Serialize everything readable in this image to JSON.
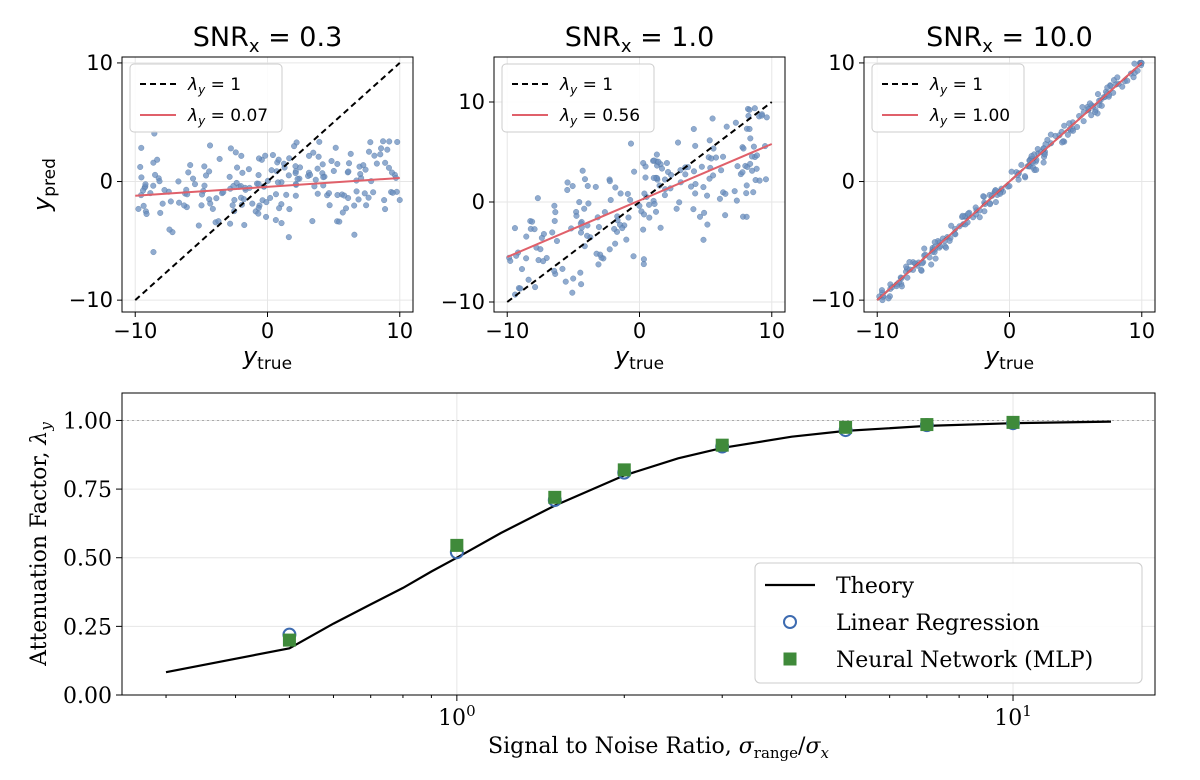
{
  "chart_data": [
    {
      "type": "scatter",
      "title_main": "SNR",
      "title_sub": "x",
      "title_value": "= 0.3",
      "xlabel_main": "y",
      "xlabel_sub": "true",
      "ylabel_main": "y",
      "ylabel_sub": "pred",
      "xlim": [
        -11,
        11
      ],
      "ylim": [
        -11,
        10.5
      ],
      "xticks": [
        -10,
        0,
        10
      ],
      "yticks": [
        -10,
        0,
        10
      ],
      "grid": true,
      "legend_position": "top-left",
      "legend": [
        {
          "label": "λ",
          "sub": "y",
          "value": "= 1",
          "style": "black-dashed"
        },
        {
          "label": "λ",
          "sub": "y",
          "value": "= 0.07",
          "style": "red-solid"
        }
      ],
      "lambda": 0.07,
      "identity_line": [
        [
          -10,
          -10
        ],
        [
          10,
          10
        ]
      ],
      "fit_line": [
        [
          -10,
          -1.2
        ],
        [
          10,
          0.3
        ]
      ],
      "noise": 1.8,
      "seed": 11,
      "n_points": 200
    },
    {
      "type": "scatter",
      "title_main": "SNR",
      "title_sub": "x",
      "title_value": "= 1.0",
      "xlabel_main": "y",
      "xlabel_sub": "true",
      "ylabel_main": "",
      "ylabel_sub": "",
      "xlim": [
        -11,
        11
      ],
      "ylim": [
        -11,
        14.5
      ],
      "xticks": [
        -10,
        0,
        10
      ],
      "yticks": [
        -10,
        0,
        10
      ],
      "grid": true,
      "legend_position": "top-left",
      "legend": [
        {
          "label": "λ",
          "sub": "y",
          "value": "= 1",
          "style": "black-dashed"
        },
        {
          "label": "λ",
          "sub": "y",
          "value": "= 0.56",
          "style": "red-solid"
        }
      ],
      "lambda": 0.56,
      "identity_line": [
        [
          -10,
          -10
        ],
        [
          10,
          10
        ]
      ],
      "fit_line": [
        [
          -10,
          -5.5
        ],
        [
          10,
          5.8
        ]
      ],
      "noise": 2.6,
      "seed": 29,
      "n_points": 200
    },
    {
      "type": "scatter",
      "title_main": "SNR",
      "title_sub": "x",
      "title_value": "= 10.0",
      "xlabel_main": "y",
      "xlabel_sub": "true",
      "ylabel_main": "",
      "ylabel_sub": "",
      "xlim": [
        -11,
        11
      ],
      "ylim": [
        -11,
        10.5
      ],
      "xticks": [
        -10,
        0,
        10
      ],
      "yticks": [
        -10,
        0,
        10
      ],
      "grid": true,
      "legend_position": "top-left",
      "legend": [
        {
          "label": "λ",
          "sub": "y",
          "value": "= 1",
          "style": "black-dashed"
        },
        {
          "label": "λ",
          "sub": "y",
          "value": "= 1.00",
          "style": "red-solid"
        }
      ],
      "lambda": 1.0,
      "identity_line": [
        [
          -10,
          -10
        ],
        [
          10,
          10
        ]
      ],
      "fit_line": [
        [
          -10,
          -10
        ],
        [
          10,
          10
        ]
      ],
      "noise": 0.45,
      "seed": 53,
      "n_points": 200
    },
    {
      "type": "line",
      "xscale": "log",
      "xlim": [
        0.25,
        18
      ],
      "ylim": [
        0.0,
        1.1
      ],
      "xticks": [
        {
          "value": 1,
          "base": "10",
          "exp": "0"
        },
        {
          "value": 10,
          "base": "10",
          "exp": "1"
        }
      ],
      "yticks": [
        "0.00",
        "0.25",
        "0.50",
        "0.75",
        "1.00"
      ],
      "ytick_values": [
        0.0,
        0.25,
        0.5,
        0.75,
        1.0
      ],
      "reference_line": 1.0,
      "xlabel_prefix": "Signal to Noise Ratio, ",
      "xlabel_sigma": "σ",
      "xlabel_sub1": "range",
      "xlabel_slash": "/",
      "xlabel_sub2": "x",
      "ylabel_prefix": "Attenuation Factor, ",
      "ylabel_lambda": "λ",
      "ylabel_sub": "y",
      "grid": true,
      "legend_position": "lower-right",
      "series": [
        {
          "name": "Theory",
          "style": "line",
          "x": [
            0.3,
            0.5,
            0.6,
            0.7,
            0.8,
            0.9,
            1.0,
            1.2,
            1.5,
            2.0,
            2.5,
            3.0,
            4.0,
            5.0,
            7.0,
            10.0,
            15.0
          ],
          "y": [
            0.083,
            0.17,
            0.26,
            0.33,
            0.39,
            0.45,
            0.5,
            0.59,
            0.69,
            0.8,
            0.862,
            0.9,
            0.941,
            0.962,
            0.98,
            0.99,
            0.996
          ]
        },
        {
          "name": "Linear Regression",
          "style": "open-circle",
          "x": [
            0.5,
            1.0,
            1.5,
            2.0,
            3.0,
            5.0,
            7.0,
            10.0
          ],
          "y": [
            0.22,
            0.52,
            0.71,
            0.81,
            0.905,
            0.965,
            0.983,
            0.99
          ]
        },
        {
          "name": "Neural Network (MLP)",
          "style": "filled-square",
          "x": [
            0.5,
            1.0,
            1.5,
            2.0,
            3.0,
            5.0,
            7.0,
            10.0
          ],
          "y": [
            0.2,
            0.545,
            0.72,
            0.82,
            0.91,
            0.975,
            0.985,
            0.993
          ]
        }
      ]
    }
  ],
  "colors": {
    "scatter_point": "#6b8fbf",
    "fit_line": "#e0606a",
    "identity_line": "#000000",
    "theory_line": "#000000",
    "linear_regression": "#3d6bb0",
    "neural_network": "#3f8a3a",
    "grid": "#e6e6e6",
    "reference": "#aaaaaa"
  }
}
